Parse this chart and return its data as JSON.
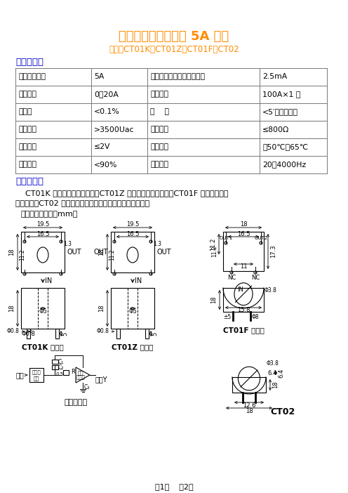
{
  "title": "微型精密电流互感器 5A 系列",
  "subtitle": "型号：CT01K、CT01Z、CT01F、CT02",
  "title_color": "#FF8C00",
  "subtitle_color": "#FF8C00",
  "section1_title": "性能参数：",
  "section2_title": "安装方法：",
  "section_color": "#0000CC",
  "table_data": [
    [
      "额定输入电流",
      "5A",
      "额定输出电流（二次电流）",
      "2.5mA"
    ],
    [
      "线性范围",
      "0～20A",
      "冲击电流",
      "100A×1 秒"
    ],
    [
      "线性度",
      "<0.1%",
      "相    移",
      "<5′（补偿后）"
    ],
    [
      "隔离耐压",
      ">3500Uac",
      "负载电阻",
      "≤800Ω"
    ],
    [
      "输出电压",
      "≤2V",
      "使用温度",
      "－50℃～65℃"
    ],
    [
      "相对湿度",
      "<90%",
      "频率范围",
      "20～4000Hz"
    ]
  ],
  "install_text1": "    CT01K 为宽边输出穿心立式；CT01Z 为窄边输出穿心立式；CT01F 为宽边输出，",
  "install_text2": "穿心卧式；CT02 只有两脚，起输出和固定作用，穿心卧式。",
  "install_bold1": "CT02",
  "pin_diagram_label": "管脚图：（单位：mm）",
  "footer": "第1页    共2页",
  "bg_color": "#FFFFFF",
  "text_color": "#000000"
}
